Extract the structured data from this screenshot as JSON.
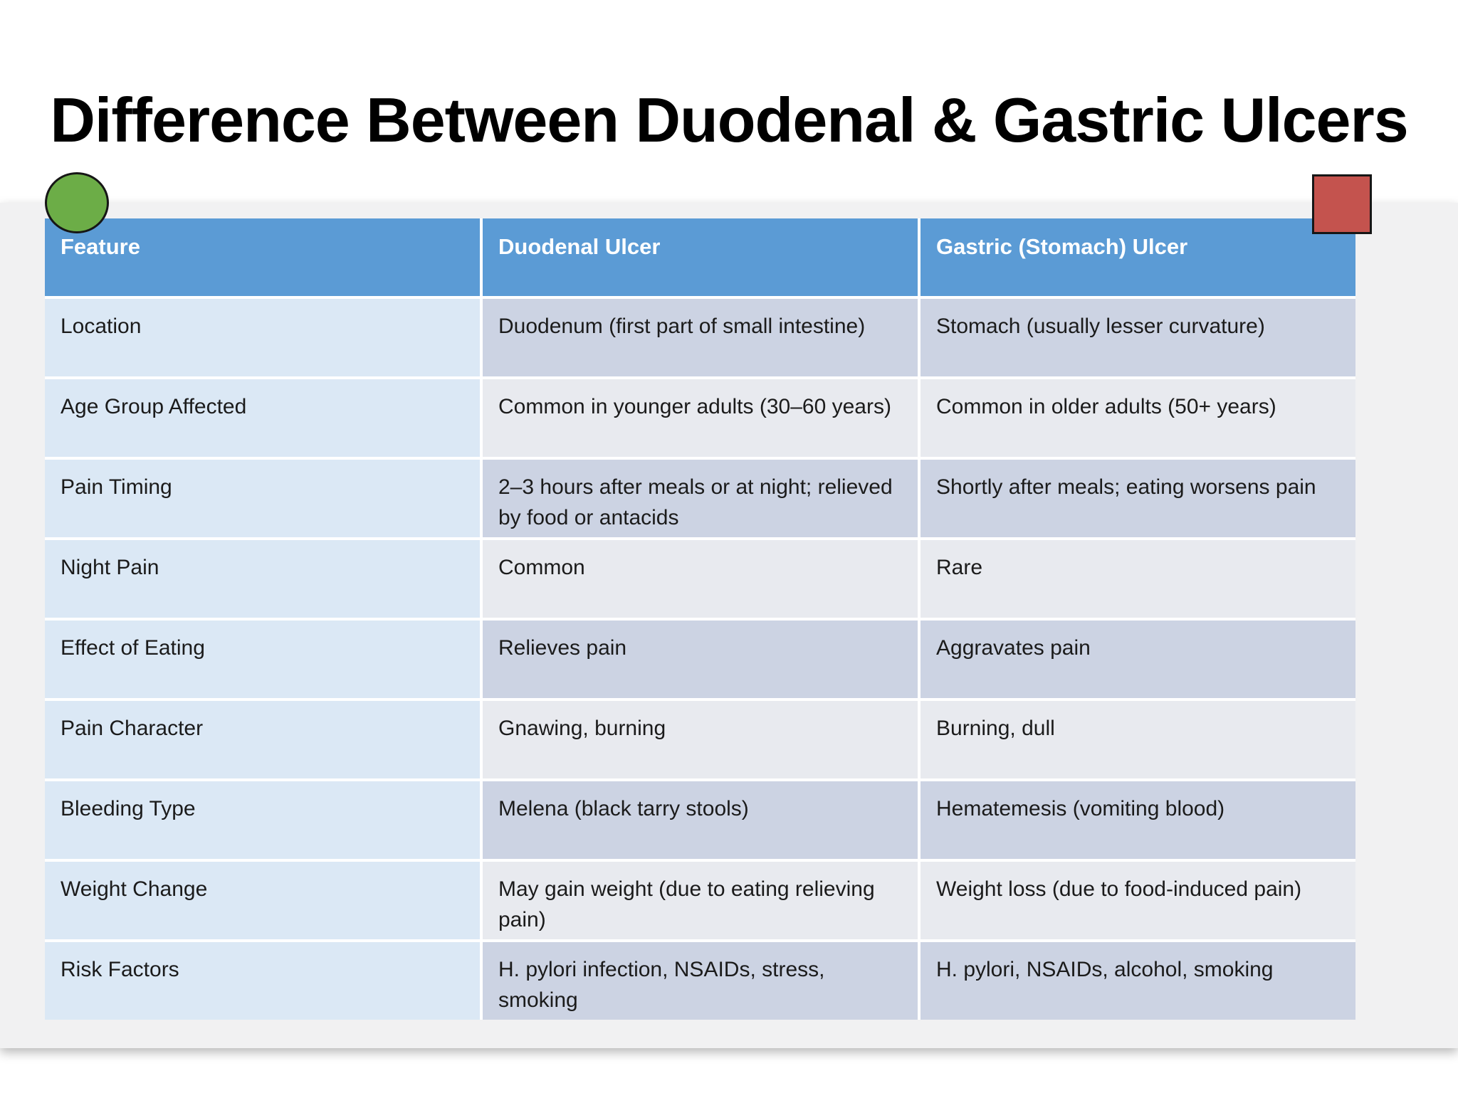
{
  "slide": {
    "title": "Difference Between Duodenal & Gastric Ulcers"
  },
  "table": {
    "columns": {
      "feature": "Feature",
      "duodenal": "Duodenal Ulcer",
      "gastric": "Gastric (Stomach) Ulcer"
    },
    "rows": [
      {
        "feature": "Location",
        "duodenal": "Duodenum (first part of small intestine)",
        "gastric": "Stomach (usually lesser curvature)"
      },
      {
        "feature": "Age Group Affected",
        "duodenal": "Common in younger adults (30–60 years)",
        "gastric": "Common in older adults (50+ years)"
      },
      {
        "feature": "Pain Timing",
        "duodenal": "2–3 hours after meals or at night; relieved by food or antacids",
        "gastric": "Shortly after meals; eating worsens pain"
      },
      {
        "feature": "Night Pain",
        "duodenal": "Common",
        "gastric": "Rare"
      },
      {
        "feature": "Effect of Eating",
        "duodenal": "Relieves pain",
        "gastric": "Aggravates pain"
      },
      {
        "feature": "Pain Character",
        "duodenal": "Gnawing, burning",
        "gastric": "Burning, dull"
      },
      {
        "feature": "Bleeding Type",
        "duodenal": "Melena (black tarry stools)",
        "gastric": "Hematemesis (vomiting blood)"
      },
      {
        "feature": "Weight Change",
        "duodenal": "May gain weight (due to eating relieving pain)",
        "gastric": "Weight loss (due to food-induced pain)"
      },
      {
        "feature": "Risk Factors",
        "duodenal": "H. pylori infection, NSAIDs, stress, smoking",
        "gastric": "H. pylori, NSAIDs, alcohol, smoking"
      }
    ]
  },
  "colors": {
    "header_blue": "#5b9bd5",
    "feature_column_blue": "#dbe8f5",
    "row_band_dark": "#ccd3e3",
    "row_band_light": "#e8eaef",
    "canvas_gray": "#f1f1f2",
    "green_shape": "#6cad47",
    "red_shape": "#c4534e"
  }
}
